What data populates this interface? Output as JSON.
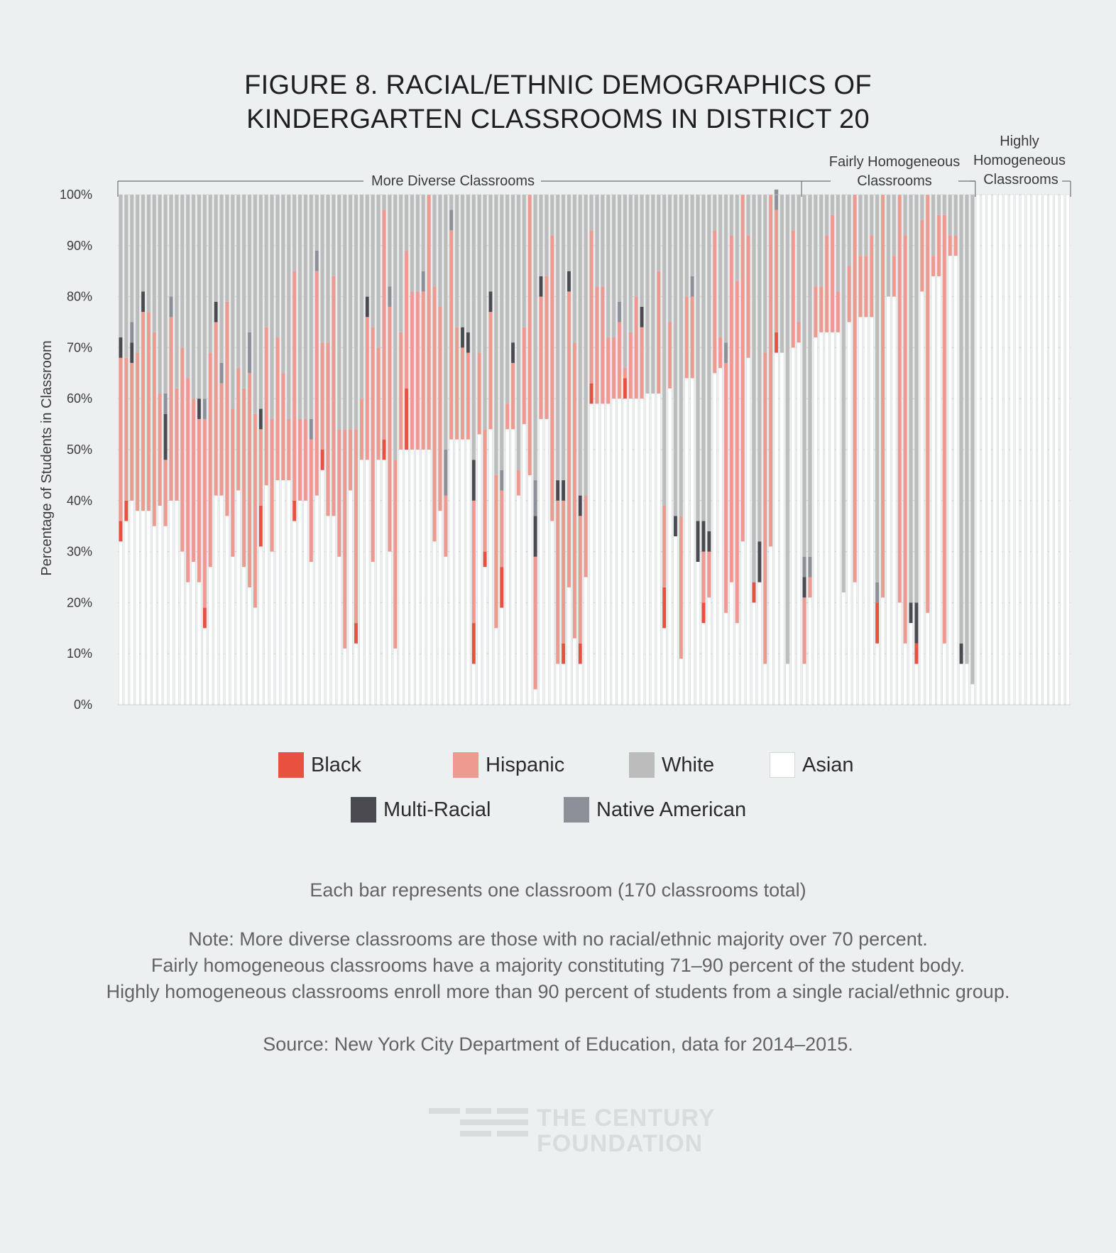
{
  "figure": {
    "title_line1": "FIGURE 8. RACIAL/ETHNIC DEMOGRAPHICS OF",
    "title_line2": "KINDERGARTEN CLASSROOMS IN DISTRICT 20"
  },
  "brackets": {
    "more_diverse": "More Diverse Classrooms",
    "fairly_line1": "Fairly Homogeneous",
    "fairly_line2": "Classrooms",
    "highly_line1": "Highly",
    "highly_line2": "Homogeneous",
    "highly_line3": "Classrooms"
  },
  "legend": {
    "items": [
      {
        "label": "Black",
        "color": "#e8503f"
      },
      {
        "label": "Hispanic",
        "color": "#ef9a90"
      },
      {
        "label": "White",
        "color": "#bcbcbc"
      },
      {
        "label": "Asian",
        "color": "#ffffff"
      },
      {
        "label": "Multi-Racial",
        "color": "#4a4a50"
      },
      {
        "label": "Native American",
        "color": "#8e9099"
      }
    ]
  },
  "notes": {
    "bar_note": "Each bar represents one classroom (170 classrooms total)",
    "note_line1": "Note: More diverse classrooms are those with no racial/ethnic majority over 70 percent.",
    "note_line2": "Fairly homogeneous classrooms have a majority constituting 71–90 percent of the student body.",
    "note_line3": "Highly homogeneous classrooms enroll more than 90 percent of students from a single racial/ethnic group.",
    "source": "Source: New York City Department of Education, data for 2014–2015."
  },
  "logo": {
    "line1": "THE CENTURY",
    "line2": "FOUNDATION"
  },
  "chart_data": {
    "type": "bar",
    "stacked": true,
    "title": "FIGURE 8. RACIAL/ETHNIC DEMOGRAPHICS OF KINDERGARTEN CLASSROOMS IN DISTRICT 20",
    "xlabel": "",
    "ylabel": "Percentage of Students in Classroom",
    "ylim": [
      0,
      100
    ],
    "yticks": [
      "0%",
      "10%",
      "20%",
      "30%",
      "40%",
      "50%",
      "60%",
      "70%",
      "80%",
      "90%",
      "100%"
    ],
    "grid": true,
    "series_order": [
      "Asian",
      "Black",
      "Hispanic",
      "Multi-Racial",
      "Native American",
      "White"
    ],
    "colors": {
      "Asian": "#ffffff",
      "Black": "#e8503f",
      "Hispanic": "#ef9a90",
      "Multi-Racial": "#4a4a50",
      "Native American": "#8e9099",
      "White": "#bcbcbc"
    },
    "classrooms": [
      [
        32,
        4,
        32,
        4,
        0,
        28
      ],
      [
        36,
        4,
        28,
        0,
        0,
        32
      ],
      [
        40,
        0,
        27,
        4,
        4,
        25
      ],
      [
        38,
        0,
        31,
        0,
        0,
        31
      ],
      [
        38,
        0,
        39,
        4,
        0,
        19
      ],
      [
        38,
        0,
        39,
        0,
        0,
        23
      ],
      [
        35,
        0,
        38,
        0,
        0,
        27
      ],
      [
        39,
        0,
        22,
        0,
        0,
        39
      ],
      [
        35,
        0,
        13,
        9,
        4,
        39
      ],
      [
        40,
        0,
        36,
        0,
        4,
        20
      ],
      [
        40,
        0,
        22,
        0,
        0,
        38
      ],
      [
        30,
        0,
        40,
        0,
        0,
        30
      ],
      [
        24,
        0,
        40,
        0,
        0,
        36
      ],
      [
        28,
        0,
        32,
        0,
        0,
        40
      ],
      [
        24,
        0,
        32,
        4,
        0,
        40
      ],
      [
        15,
        4,
        37,
        0,
        4,
        40
      ],
      [
        27,
        0,
        42,
        0,
        0,
        31
      ],
      [
        41,
        0,
        34,
        4,
        0,
        21
      ],
      [
        41,
        0,
        22,
        0,
        4,
        33
      ],
      [
        37,
        0,
        42,
        0,
        0,
        21
      ],
      [
        29,
        0,
        29,
        0,
        0,
        42
      ],
      [
        42,
        0,
        24,
        0,
        0,
        34
      ],
      [
        27,
        0,
        35,
        0,
        0,
        38
      ],
      [
        23,
        0,
        42,
        0,
        8,
        27
      ],
      [
        19,
        0,
        38,
        0,
        0,
        43
      ],
      [
        31,
        8,
        15,
        4,
        0,
        42
      ],
      [
        43,
        0,
        31,
        0,
        0,
        26
      ],
      [
        30,
        0,
        26,
        0,
        0,
        44
      ],
      [
        44,
        0,
        28,
        0,
        0,
        28
      ],
      [
        44,
        0,
        21,
        0,
        0,
        35
      ],
      [
        44,
        0,
        12,
        0,
        0,
        44
      ],
      [
        36,
        4,
        45,
        0,
        0,
        15
      ],
      [
        40,
        0,
        16,
        0,
        0,
        44
      ],
      [
        40,
        0,
        16,
        0,
        0,
        44
      ],
      [
        28,
        0,
        24,
        0,
        4,
        44
      ],
      [
        41,
        0,
        44,
        0,
        4,
        11
      ],
      [
        46,
        4,
        21,
        0,
        0,
        29
      ],
      [
        37,
        0,
        34,
        0,
        0,
        29
      ],
      [
        37,
        0,
        47,
        0,
        0,
        16
      ],
      [
        29,
        0,
        25,
        0,
        0,
        46
      ],
      [
        11,
        0,
        43,
        0,
        0,
        46
      ],
      [
        42,
        0,
        12,
        0,
        0,
        46
      ],
      [
        12,
        4,
        38,
        0,
        0,
        46
      ],
      [
        48,
        0,
        12,
        0,
        0,
        40
      ],
      [
        48,
        0,
        28,
        4,
        0,
        20
      ],
      [
        28,
        0,
        46,
        0,
        0,
        26
      ],
      [
        48,
        0,
        22,
        0,
        0,
        30
      ],
      [
        48,
        4,
        45,
        0,
        0,
        3
      ],
      [
        30,
        0,
        48,
        0,
        4,
        18
      ],
      [
        11,
        0,
        37,
        0,
        0,
        52
      ],
      [
        50,
        0,
        23,
        0,
        0,
        27
      ],
      [
        50,
        12,
        27,
        0,
        0,
        11
      ],
      [
        50,
        0,
        31,
        0,
        0,
        19
      ],
      [
        50,
        0,
        31,
        0,
        0,
        19
      ],
      [
        50,
        0,
        31,
        0,
        4,
        15
      ],
      [
        50,
        0,
        50,
        0,
        0,
        0
      ],
      [
        32,
        0,
        50,
        0,
        0,
        18
      ],
      [
        38,
        0,
        40,
        0,
        0,
        22
      ],
      [
        29,
        0,
        12,
        0,
        9,
        50
      ],
      [
        52,
        0,
        41,
        0,
        4,
        3
      ],
      [
        52,
        0,
        22,
        0,
        0,
        26
      ],
      [
        52,
        0,
        18,
        4,
        0,
        26
      ],
      [
        52,
        0,
        17,
        4,
        0,
        27
      ],
      [
        8,
        8,
        24,
        8,
        0,
        52
      ],
      [
        53,
        0,
        16,
        0,
        0,
        31
      ],
      [
        27,
        3,
        24,
        0,
        0,
        46
      ],
      [
        54,
        0,
        23,
        4,
        0,
        19
      ],
      [
        15,
        0,
        30,
        0,
        0,
        55
      ],
      [
        19,
        8,
        15,
        0,
        4,
        54
      ],
      [
        54,
        0,
        5,
        0,
        0,
        41
      ],
      [
        54,
        0,
        13,
        4,
        0,
        29
      ],
      [
        41,
        0,
        5,
        0,
        0,
        54
      ],
      [
        55,
        0,
        19,
        0,
        0,
        26
      ],
      [
        45,
        0,
        55,
        0,
        0,
        0
      ],
      [
        3,
        0,
        26,
        8,
        7,
        56
      ],
      [
        56,
        0,
        24,
        4,
        0,
        16
      ],
      [
        56,
        0,
        28,
        0,
        0,
        16
      ],
      [
        36,
        0,
        56,
        0,
        0,
        8
      ],
      [
        8,
        0,
        32,
        4,
        0,
        56
      ],
      [
        8,
        4,
        28,
        4,
        0,
        56
      ],
      [
        23,
        0,
        58,
        4,
        0,
        15
      ],
      [
        13,
        0,
        58,
        0,
        0,
        29
      ],
      [
        8,
        4,
        25,
        4,
        0,
        59
      ],
      [
        25,
        0,
        16,
        0,
        0,
        59
      ],
      [
        59,
        4,
        30,
        0,
        0,
        7
      ],
      [
        59,
        0,
        23,
        0,
        0,
        18
      ],
      [
        59,
        0,
        23,
        0,
        0,
        18
      ],
      [
        59,
        0,
        13,
        0,
        0,
        28
      ],
      [
        60,
        0,
        12,
        0,
        0,
        28
      ],
      [
        60,
        0,
        15,
        0,
        4,
        21
      ],
      [
        60,
        4,
        2,
        0,
        0,
        34
      ],
      [
        60,
        0,
        13,
        0,
        0,
        27
      ],
      [
        60,
        0,
        20,
        0,
        0,
        20
      ],
      [
        60,
        0,
        14,
        4,
        0,
        22
      ],
      [
        61,
        0,
        0,
        0,
        0,
        39
      ],
      [
        61,
        0,
        0,
        0,
        0,
        39
      ],
      [
        61,
        0,
        24,
        0,
        0,
        15
      ],
      [
        15,
        8,
        16,
        0,
        0,
        61
      ],
      [
        62,
        0,
        13,
        0,
        0,
        25
      ],
      [
        33,
        0,
        0,
        4,
        0,
        63
      ],
      [
        9,
        0,
        28,
        0,
        0,
        63
      ],
      [
        64,
        0,
        16,
        0,
        0,
        20
      ],
      [
        64,
        0,
        16,
        0,
        4,
        16
      ],
      [
        28,
        0,
        0,
        8,
        0,
        64
      ],
      [
        16,
        4,
        10,
        6,
        0,
        64
      ],
      [
        21,
        0,
        9,
        4,
        0,
        66
      ],
      [
        65,
        0,
        28,
        0,
        0,
        7
      ],
      [
        66,
        0,
        6,
        0,
        0,
        28
      ],
      [
        18,
        0,
        49,
        0,
        4,
        29
      ],
      [
        24,
        0,
        68,
        0,
        0,
        8
      ],
      [
        16,
        0,
        67,
        0,
        0,
        17
      ],
      [
        32,
        0,
        68,
        0,
        0,
        0
      ],
      [
        68,
        0,
        24,
        0,
        0,
        8
      ],
      [
        20,
        4,
        0,
        0,
        0,
        76
      ],
      [
        24,
        0,
        0,
        8,
        0,
        68
      ],
      [
        8,
        0,
        61,
        0,
        0,
        31
      ],
      [
        31,
        0,
        69,
        0,
        0,
        0
      ],
      [
        69,
        4,
        24,
        0,
        4,
        0
      ],
      [
        69,
        0,
        0,
        0,
        0,
        31
      ],
      [
        8,
        0,
        0,
        0,
        0,
        92
      ],
      [
        70,
        0,
        23,
        0,
        0,
        7
      ],
      [
        71,
        0,
        4,
        0,
        0,
        25
      ],
      [
        8,
        0,
        13,
        4,
        4,
        71
      ],
      [
        21,
        0,
        4,
        0,
        4,
        71
      ],
      [
        72,
        0,
        10,
        0,
        0,
        18
      ],
      [
        73,
        0,
        9,
        0,
        0,
        18
      ],
      [
        73,
        0,
        19,
        0,
        0,
        8
      ],
      [
        73,
        0,
        23,
        0,
        0,
        4
      ],
      [
        73,
        0,
        8,
        0,
        0,
        19
      ],
      [
        22,
        0,
        0,
        0,
        0,
        78
      ],
      [
        75,
        0,
        11,
        0,
        0,
        14
      ],
      [
        24,
        0,
        76,
        0,
        0,
        0
      ],
      [
        76,
        0,
        12,
        0,
        0,
        12
      ],
      [
        76,
        0,
        12,
        0,
        0,
        12
      ],
      [
        76,
        0,
        16,
        0,
        0,
        8
      ],
      [
        12,
        8,
        0,
        0,
        4,
        76
      ],
      [
        21,
        0,
        79,
        0,
        0,
        0
      ],
      [
        80,
        0,
        0,
        0,
        0,
        20
      ],
      [
        80,
        0,
        8,
        0,
        0,
        12
      ],
      [
        20,
        0,
        80,
        0,
        0,
        0
      ],
      [
        12,
        0,
        80,
        0,
        0,
        8
      ],
      [
        16,
        0,
        0,
        4,
        0,
        80
      ],
      [
        8,
        4,
        0,
        8,
        0,
        80
      ],
      [
        81,
        0,
        14,
        0,
        0,
        5
      ],
      [
        18,
        0,
        82,
        0,
        0,
        0
      ],
      [
        84,
        0,
        4,
        0,
        0,
        12
      ],
      [
        84,
        0,
        12,
        0,
        0,
        4
      ],
      [
        12,
        0,
        84,
        0,
        0,
        4
      ],
      [
        88,
        0,
        4,
        0,
        0,
        8
      ],
      [
        88,
        0,
        4,
        0,
        0,
        8
      ],
      [
        8,
        0,
        0,
        4,
        0,
        88
      ],
      [
        8,
        0,
        0,
        0,
        0,
        92
      ],
      [
        4,
        0,
        0,
        0,
        0,
        96
      ],
      [
        100,
        0,
        0,
        0,
        0,
        0
      ],
      [
        100,
        0,
        0,
        0,
        0,
        0
      ],
      [
        100,
        0,
        0,
        0,
        0,
        0
      ],
      [
        100,
        0,
        0,
        0,
        0,
        0
      ],
      [
        100,
        0,
        0,
        0,
        0,
        0
      ],
      [
        100,
        0,
        0,
        0,
        0,
        0
      ],
      [
        100,
        0,
        0,
        0,
        0,
        0
      ],
      [
        100,
        0,
        0,
        0,
        0,
        0
      ],
      [
        100,
        0,
        0,
        0,
        0,
        0
      ],
      [
        100,
        0,
        0,
        0,
        0,
        0
      ],
      [
        100,
        0,
        0,
        0,
        0,
        0
      ],
      [
        100,
        0,
        0,
        0,
        0,
        0
      ],
      [
        100,
        0,
        0,
        0,
        0,
        0
      ],
      [
        100,
        0,
        0,
        0,
        0,
        0
      ],
      [
        100,
        0,
        0,
        0,
        0,
        0
      ],
      [
        100,
        0,
        0,
        0,
        0,
        0
      ],
      [
        100,
        0,
        0,
        0,
        0,
        0
      ]
    ],
    "groups": [
      {
        "name": "More Diverse Classrooms",
        "first": 0,
        "last": 121
      },
      {
        "name": "Fairly Homogeneous Classrooms",
        "first": 122,
        "last": 152
      },
      {
        "name": "Highly Homogeneous Classrooms",
        "first": 153,
        "last": 169
      }
    ]
  }
}
